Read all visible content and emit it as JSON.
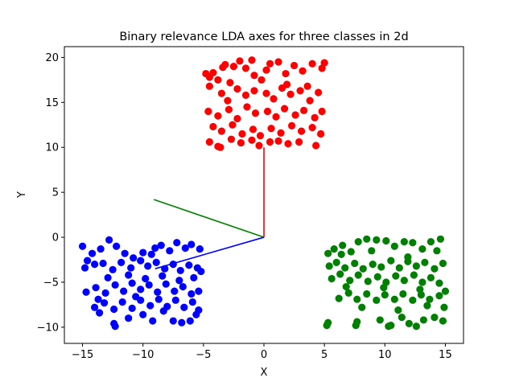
{
  "chart_data": {
    "type": "scatter",
    "title": "Binary relevance LDA axes for three classes in 2d",
    "xlabel": "X",
    "ylabel": "Y",
    "xlim": [
      -16.5,
      16.5
    ],
    "ylim": [
      -11.8,
      21.2
    ],
    "xticks": [
      -15,
      -10,
      -5,
      0,
      5,
      10,
      15
    ],
    "yticks": [
      -10,
      -5,
      0,
      5,
      10,
      15,
      20
    ],
    "xtick_labels": [
      "−15",
      "−10",
      "−5",
      "0",
      "5",
      "10",
      "15"
    ],
    "ytick_labels": [
      "−10",
      "−5",
      "0",
      "5",
      "10",
      "15",
      "20"
    ],
    "grid": false,
    "series": [
      {
        "color": "#ff0000",
        "points": [
          [
            -4.8,
            18.2
          ],
          [
            -4.5,
            17.8
          ],
          [
            -4.2,
            18.3
          ],
          [
            -3.8,
            17.5
          ],
          [
            -3.2,
            19.2
          ],
          [
            -2.5,
            19.0
          ],
          [
            -2.0,
            19.6
          ],
          [
            -1.5,
            18.8
          ],
          [
            -0.8,
            18.0
          ],
          [
            -0.2,
            17.5
          ],
          [
            0.5,
            19.3
          ],
          [
            1.2,
            19.5
          ],
          [
            1.8,
            18.2
          ],
          [
            2.5,
            19.1
          ],
          [
            3.2,
            18.5
          ],
          [
            4.0,
            19.3
          ],
          [
            4.8,
            18.8
          ],
          [
            5.0,
            19.4
          ],
          [
            -4.5,
            16.8
          ],
          [
            -3.5,
            16.0
          ],
          [
            -3.0,
            15.2
          ],
          [
            -2.2,
            16.5
          ],
          [
            -1.5,
            15.8
          ],
          [
            -0.8,
            16.3
          ],
          [
            0.2,
            16.0
          ],
          [
            0.8,
            15.4
          ],
          [
            1.5,
            16.6
          ],
          [
            2.2,
            15.9
          ],
          [
            3.0,
            16.3
          ],
          [
            3.8,
            15.2
          ],
          [
            4.5,
            16.1
          ],
          [
            -4.6,
            14.0
          ],
          [
            -3.8,
            13.5
          ],
          [
            -2.9,
            14.2
          ],
          [
            -2.2,
            13.2
          ],
          [
            -1.4,
            14.5
          ],
          [
            -0.7,
            13.8
          ],
          [
            0.3,
            14.0
          ],
          [
            1.0,
            13.4
          ],
          [
            1.7,
            14.3
          ],
          [
            2.6,
            13.6
          ],
          [
            3.3,
            14.1
          ],
          [
            4.2,
            13.3
          ],
          [
            4.8,
            14.0
          ],
          [
            -4.2,
            12.3
          ],
          [
            -3.5,
            11.8
          ],
          [
            -2.6,
            12.5
          ],
          [
            -1.8,
            11.5
          ],
          [
            -0.9,
            12.0
          ],
          [
            -0.3,
            11.3
          ],
          [
            0.6,
            12.1
          ],
          [
            1.4,
            11.6
          ],
          [
            2.3,
            12.4
          ],
          [
            3.1,
            11.8
          ],
          [
            4.0,
            12.2
          ],
          [
            4.7,
            11.5
          ],
          [
            -4.5,
            10.6
          ],
          [
            -3.8,
            10.1
          ],
          [
            -3.6,
            10.0
          ],
          [
            -2.7,
            10.9
          ],
          [
            -1.9,
            10.5
          ],
          [
            -1.0,
            10.8
          ],
          [
            -0.4,
            10.2
          ],
          [
            0.5,
            10.6
          ],
          [
            1.2,
            10.7
          ],
          [
            2.0,
            10.4
          ],
          [
            2.9,
            10.6
          ],
          [
            4.3,
            10.2
          ],
          [
            -3.4,
            18.9
          ],
          [
            -1.0,
            19.7
          ],
          [
            0.2,
            18.6
          ],
          [
            3.6,
            16.8
          ],
          [
            -2.8,
            17.2
          ],
          [
            1.9,
            17.0
          ]
        ]
      },
      {
        "color": "#0000ff",
        "points": [
          [
            -15.0,
            -1.0
          ],
          [
            -14.6,
            -2.6
          ],
          [
            -14.2,
            -1.8
          ],
          [
            -13.5,
            -1.3
          ],
          [
            -12.8,
            -0.3
          ],
          [
            -12.2,
            -1.0
          ],
          [
            -11.5,
            -1.8
          ],
          [
            -10.8,
            -2.3
          ],
          [
            -10.0,
            -1.7
          ],
          [
            -9.3,
            -1.9
          ],
          [
            -8.5,
            -0.9
          ],
          [
            -7.8,
            -1.5
          ],
          [
            -7.2,
            -0.6
          ],
          [
            -6.5,
            -1.2
          ],
          [
            -6.0,
            -0.8
          ],
          [
            -5.3,
            -1.3
          ],
          [
            -14.8,
            -3.4
          ],
          [
            -14.0,
            -3.0
          ],
          [
            -13.3,
            -2.9
          ],
          [
            -12.5,
            -3.6
          ],
          [
            -11.8,
            -2.8
          ],
          [
            -11.0,
            -3.4
          ],
          [
            -10.2,
            -2.6
          ],
          [
            -9.6,
            -3.2
          ],
          [
            -8.9,
            -2.8
          ],
          [
            -8.2,
            -3.5
          ],
          [
            -7.5,
            -3.0
          ],
          [
            -6.9,
            -3.7
          ],
          [
            -6.2,
            -3.1
          ],
          [
            -5.5,
            -3.4
          ],
          [
            -5.2,
            -3.8
          ],
          [
            -14.7,
            -6.1
          ],
          [
            -13.9,
            -5.6
          ],
          [
            -13.1,
            -6.2
          ],
          [
            -12.3,
            -5.3
          ],
          [
            -11.6,
            -6.0
          ],
          [
            -10.9,
            -5.1
          ],
          [
            -10.2,
            -5.8
          ],
          [
            -9.5,
            -5.3
          ],
          [
            -8.8,
            -6.1
          ],
          [
            -8.1,
            -5.2
          ],
          [
            -7.4,
            -6.0
          ],
          [
            -6.7,
            -5.5
          ],
          [
            -6.0,
            -6.3
          ],
          [
            -5.4,
            -6.0
          ],
          [
            -14.0,
            -7.8
          ],
          [
            -13.2,
            -7.3
          ],
          [
            -12.4,
            -8.0
          ],
          [
            -11.7,
            -7.2
          ],
          [
            -10.9,
            -7.9
          ],
          [
            -10.2,
            -7.0
          ],
          [
            -9.4,
            -7.6
          ],
          [
            -8.7,
            -6.9
          ],
          [
            -8.0,
            -7.7
          ],
          [
            -7.3,
            -7.0
          ],
          [
            -6.6,
            -7.8
          ],
          [
            -5.9,
            -7.2
          ],
          [
            -5.4,
            -8.1
          ],
          [
            -13.6,
            -8.4
          ],
          [
            -12.4,
            -9.6
          ],
          [
            -12.3,
            -9.9
          ],
          [
            -11.2,
            -9.0
          ],
          [
            -10.0,
            -8.6
          ],
          [
            -9.2,
            -9.3
          ],
          [
            -8.3,
            -8.2
          ],
          [
            -7.5,
            -9.3
          ],
          [
            -6.8,
            -9.5
          ],
          [
            -6.1,
            -9.3
          ],
          [
            -5.6,
            -8.6
          ],
          [
            -12.9,
            -4.5
          ],
          [
            -11.2,
            -4.2
          ],
          [
            -9.8,
            -4.6
          ],
          [
            -8.4,
            -4.3
          ],
          [
            -7.0,
            -4.8
          ],
          [
            -5.8,
            -4.5
          ],
          [
            -13.7,
            -6.9
          ],
          [
            -10.6,
            -6.6
          ],
          [
            -9.0,
            -1.2
          ]
        ]
      },
      {
        "color": "#008000",
        "points": [
          [
            5.3,
            -1.8
          ],
          [
            5.8,
            -1.3
          ],
          [
            6.5,
            -0.9
          ],
          [
            7.2,
            -1.6
          ],
          [
            7.8,
            -0.5
          ],
          [
            8.5,
            -0.2
          ],
          [
            9.3,
            -0.3
          ],
          [
            10.1,
            -0.4
          ],
          [
            10.8,
            -1.0
          ],
          [
            11.6,
            -0.5
          ],
          [
            12.3,
            -0.6
          ],
          [
            13.1,
            -1.3
          ],
          [
            13.8,
            -0.5
          ],
          [
            14.6,
            -0.2
          ],
          [
            14.3,
            -1.5
          ],
          [
            5.4,
            -3.2
          ],
          [
            6.0,
            -2.8
          ],
          [
            6.7,
            -3.4
          ],
          [
            7.5,
            -2.9
          ],
          [
            8.2,
            -3.5
          ],
          [
            9.0,
            -3.0
          ],
          [
            9.7,
            -3.3
          ],
          [
            10.5,
            -2.6
          ],
          [
            11.2,
            -3.4
          ],
          [
            11.9,
            -2.7
          ],
          [
            12.6,
            -3.2
          ],
          [
            13.3,
            -2.8
          ],
          [
            14.1,
            -3.5
          ],
          [
            14.8,
            -2.9
          ],
          [
            5.6,
            -4.6
          ],
          [
            6.3,
            -4.1
          ],
          [
            7.1,
            -4.8
          ],
          [
            7.8,
            -4.2
          ],
          [
            8.6,
            -4.9
          ],
          [
            9.4,
            -4.4
          ],
          [
            10.1,
            -5.0
          ],
          [
            10.9,
            -4.3
          ],
          [
            11.6,
            -4.8
          ],
          [
            12.4,
            -4.2
          ],
          [
            13.1,
            -5.0
          ],
          [
            13.8,
            -4.5
          ],
          [
            14.5,
            -5.1
          ],
          [
            6.2,
            -6.8
          ],
          [
            7.0,
            -6.2
          ],
          [
            7.7,
            -6.9
          ],
          [
            8.5,
            -6.3
          ],
          [
            9.3,
            -7.0
          ],
          [
            10.0,
            -6.4
          ],
          [
            10.8,
            -6.9
          ],
          [
            11.5,
            -6.3
          ],
          [
            12.3,
            -7.0
          ],
          [
            13.0,
            -6.4
          ],
          [
            13.7,
            -6.9
          ],
          [
            14.5,
            -6.5
          ],
          [
            15.0,
            -6.0
          ],
          [
            5.2,
            -9.8
          ],
          [
            5.3,
            -9.5
          ],
          [
            7.6,
            -9.8
          ],
          [
            7.7,
            -9.4
          ],
          [
            9.6,
            -9.2
          ],
          [
            10.3,
            -9.9
          ],
          [
            10.5,
            -9.8
          ],
          [
            11.4,
            -8.9
          ],
          [
            12.0,
            -9.6
          ],
          [
            12.6,
            -9.9
          ],
          [
            13.2,
            -9.2
          ],
          [
            14.1,
            -8.9
          ],
          [
            14.8,
            -9.3
          ],
          [
            14.9,
            -7.8
          ],
          [
            6.4,
            -1.9
          ],
          [
            8.9,
            -1.5
          ],
          [
            11.9,
            -2.2
          ],
          [
            9.9,
            -5.6
          ],
          [
            12.9,
            -5.8
          ],
          [
            6.8,
            -5.5
          ],
          [
            8.1,
            -7.8
          ],
          [
            11.1,
            -8.1
          ],
          [
            13.5,
            -7.6
          ]
        ]
      }
    ],
    "axes_lines": [
      {
        "color": "#ff0000",
        "from": [
          0,
          0
        ],
        "to": [
          0,
          10
        ]
      },
      {
        "color": "#008000",
        "from": [
          0,
          0
        ],
        "to": [
          -9.1,
          4.2
        ]
      },
      {
        "color": "#0000ff",
        "from": [
          0,
          0
        ],
        "to": [
          -9.0,
          -3.5
        ]
      }
    ]
  }
}
